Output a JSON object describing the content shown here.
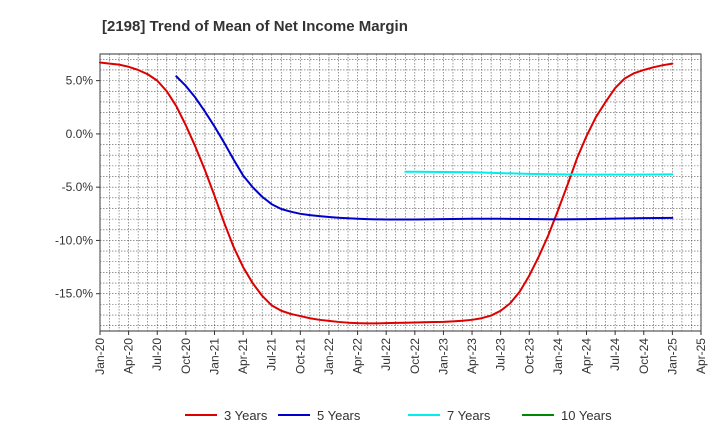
{
  "chart_data": {
    "type": "line",
    "title": "[2198]  Trend of Mean of Net Income Margin",
    "xlabel": "",
    "ylabel": "",
    "x_ticks": [
      "Jan-20",
      "Apr-20",
      "Jul-20",
      "Oct-20",
      "Jan-21",
      "Apr-21",
      "Jul-21",
      "Oct-21",
      "Jan-22",
      "Apr-22",
      "Jul-22",
      "Oct-22",
      "Jan-23",
      "Apr-23",
      "Jul-23",
      "Oct-23",
      "Jan-24",
      "Apr-24",
      "Jul-24",
      "Oct-24",
      "Jan-25",
      "Apr-25"
    ],
    "y_ticks": [
      "5.0%",
      "0.0%",
      "-5.0%",
      "-10.0%",
      "-15.0%"
    ],
    "y_tick_values": [
      5,
      0,
      -5,
      -10,
      -15
    ],
    "ylim": [
      -18.5,
      7.5
    ],
    "x_range": [
      "Jan-20",
      "Apr-25"
    ],
    "grid": true,
    "legend_position": "bottom",
    "series": [
      {
        "name": "3 Years",
        "color": "#dd0000",
        "points": [
          [
            "Jan-20",
            6.7
          ],
          [
            "Feb-20",
            6.6
          ],
          [
            "Mar-20",
            6.5
          ],
          [
            "Apr-20",
            6.3
          ],
          [
            "May-20",
            6.0
          ],
          [
            "Jun-20",
            5.6
          ],
          [
            "Jul-20",
            5.0
          ],
          [
            "Aug-20",
            4.0
          ],
          [
            "Sep-20",
            2.6
          ],
          [
            "Oct-20",
            0.8
          ],
          [
            "Nov-20",
            -1.2
          ],
          [
            "Dec-20",
            -3.4
          ],
          [
            "Jan-21",
            -5.8
          ],
          [
            "Feb-21",
            -8.3
          ],
          [
            "Mar-21",
            -10.6
          ],
          [
            "Apr-21",
            -12.5
          ],
          [
            "May-21",
            -14.0
          ],
          [
            "Jun-21",
            -15.2
          ],
          [
            "Jul-21",
            -16.1
          ],
          [
            "Aug-21",
            -16.6
          ],
          [
            "Sep-21",
            -16.9
          ],
          [
            "Oct-21",
            -17.1
          ],
          [
            "Nov-21",
            -17.3
          ],
          [
            "Dec-21",
            -17.45
          ],
          [
            "Jan-22",
            -17.55
          ],
          [
            "Feb-22",
            -17.65
          ],
          [
            "Mar-22",
            -17.72
          ],
          [
            "Apr-22",
            -17.76
          ],
          [
            "May-22",
            -17.78
          ],
          [
            "Jun-22",
            -17.78
          ],
          [
            "Jul-22",
            -17.76
          ],
          [
            "Aug-22",
            -17.74
          ],
          [
            "Sep-22",
            -17.72
          ],
          [
            "Oct-22",
            -17.7
          ],
          [
            "Nov-22",
            -17.68
          ],
          [
            "Dec-22",
            -17.66
          ],
          [
            "Jan-23",
            -17.64
          ],
          [
            "Feb-23",
            -17.6
          ],
          [
            "Mar-23",
            -17.54
          ],
          [
            "Apr-23",
            -17.45
          ],
          [
            "May-23",
            -17.3
          ],
          [
            "Jun-23",
            -17.05
          ],
          [
            "Jul-23",
            -16.6
          ],
          [
            "Aug-23",
            -15.9
          ],
          [
            "Sep-23",
            -14.8
          ],
          [
            "Oct-23",
            -13.3
          ],
          [
            "Nov-23",
            -11.5
          ],
          [
            "Dec-23",
            -9.5
          ],
          [
            "Jan-24",
            -7.2
          ],
          [
            "Feb-24",
            -4.8
          ],
          [
            "Mar-24",
            -2.3
          ],
          [
            "Apr-24",
            -0.2
          ],
          [
            "May-24",
            1.6
          ],
          [
            "Jun-24",
            3.0
          ],
          [
            "Jul-24",
            4.3
          ],
          [
            "Aug-24",
            5.2
          ],
          [
            "Sep-24",
            5.7
          ],
          [
            "Oct-24",
            6.0
          ],
          [
            "Nov-24",
            6.25
          ],
          [
            "Dec-24",
            6.45
          ],
          [
            "Jan-25",
            6.6
          ]
        ]
      },
      {
        "name": "5 Years",
        "color": "#0000cc",
        "points": [
          [
            "Sep-20",
            5.4
          ],
          [
            "Oct-20",
            4.5
          ],
          [
            "Nov-20",
            3.4
          ],
          [
            "Dec-20",
            2.1
          ],
          [
            "Jan-21",
            0.7
          ],
          [
            "Feb-21",
            -0.8
          ],
          [
            "Mar-21",
            -2.4
          ],
          [
            "Apr-21",
            -3.9
          ],
          [
            "May-21",
            -5.0
          ],
          [
            "Jun-21",
            -5.9
          ],
          [
            "Jul-21",
            -6.6
          ],
          [
            "Aug-21",
            -7.05
          ],
          [
            "Sep-21",
            -7.3
          ],
          [
            "Oct-21",
            -7.5
          ],
          [
            "Nov-21",
            -7.62
          ],
          [
            "Dec-21",
            -7.72
          ],
          [
            "Jan-22",
            -7.8
          ],
          [
            "Feb-22",
            -7.87
          ],
          [
            "Mar-22",
            -7.92
          ],
          [
            "Apr-22",
            -7.97
          ],
          [
            "May-22",
            -8.0
          ],
          [
            "Jun-22",
            -8.02
          ],
          [
            "Jul-22",
            -8.03
          ],
          [
            "Oct-22",
            -8.03
          ],
          [
            "Jan-23",
            -8.0
          ],
          [
            "Apr-23",
            -7.97
          ],
          [
            "Jul-23",
            -7.97
          ],
          [
            "Oct-23",
            -7.99
          ],
          [
            "Jan-24",
            -8.02
          ],
          [
            "Apr-24",
            -8.0
          ],
          [
            "Jul-24",
            -7.95
          ],
          [
            "Oct-24",
            -7.9
          ],
          [
            "Jan-25",
            -7.88
          ]
        ]
      },
      {
        "name": "7 Years",
        "color": "#00eeee",
        "points": [
          [
            "Sep-22",
            -3.55
          ],
          [
            "Oct-22",
            -3.55
          ],
          [
            "Jan-23",
            -3.57
          ],
          [
            "Apr-23",
            -3.6
          ],
          [
            "Jul-23",
            -3.68
          ],
          [
            "Oct-23",
            -3.75
          ],
          [
            "Jan-24",
            -3.8
          ],
          [
            "Apr-24",
            -3.82
          ],
          [
            "Jul-24",
            -3.82
          ],
          [
            "Oct-24",
            -3.82
          ],
          [
            "Jan-25",
            -3.8
          ]
        ]
      },
      {
        "name": "10 Years",
        "color": "#008800",
        "points": []
      }
    ]
  }
}
